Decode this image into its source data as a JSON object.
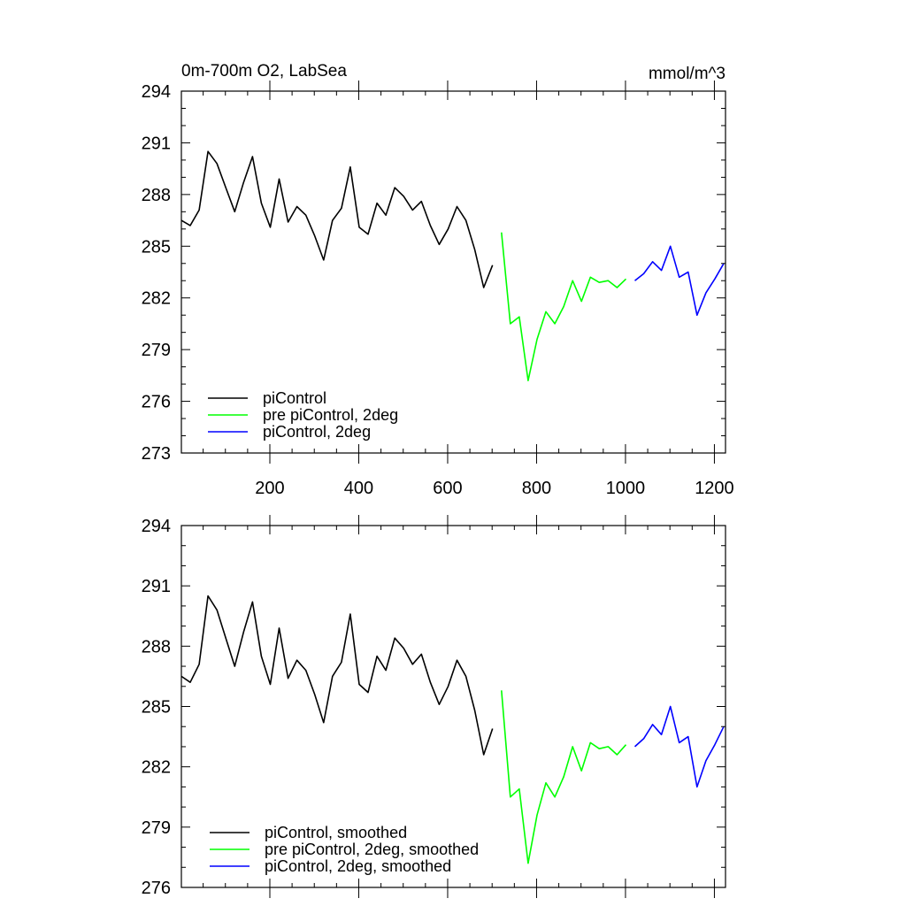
{
  "chart_data": [
    {
      "type": "line",
      "title": "0m-700m O2, LabSea",
      "units": "mmol/m^3",
      "xlabel": "",
      "ylabel": "",
      "xlim": [
        1,
        1225
      ],
      "ylim": [
        273,
        294
      ],
      "xticks": [
        200,
        400,
        600,
        800,
        1000,
        1200
      ],
      "yticks": [
        294,
        291,
        288,
        285,
        282,
        279,
        276,
        273
      ],
      "grid": false,
      "legend_position": "lower-left",
      "series": [
        {
          "name": "piControl",
          "color": "#000000",
          "x_step": 20,
          "x_start": 1,
          "values": [
            286.5,
            286.2,
            287.1,
            290.5,
            289.8,
            288.4,
            287.0,
            288.7,
            290.2,
            287.5,
            286.1,
            288.9,
            286.4,
            287.3,
            286.8,
            285.6,
            284.2,
            286.5,
            287.2,
            289.6,
            286.1,
            285.7,
            287.5,
            286.8,
            288.4,
            287.9,
            287.1,
            287.6,
            286.2,
            285.1,
            286.0,
            287.3,
            286.5,
            284.8,
            282.6,
            283.9
          ]
        },
        {
          "name": "pre piControl, 2deg",
          "color": "#00ff00",
          "x_step": 20,
          "x_start": 721,
          "values": [
            285.8,
            280.5,
            280.9,
            277.2,
            279.6,
            281.2,
            280.5,
            281.5,
            283.0,
            281.8,
            283.2,
            282.9,
            283.0,
            282.6,
            283.1
          ]
        },
        {
          "name": "piControl, 2deg",
          "color": "#0000ff",
          "x_step": 20,
          "x_start": 1021,
          "values": [
            283.0,
            283.4,
            284.1,
            283.6,
            285.0,
            283.2,
            283.5,
            281.0,
            282.3,
            283.1,
            284.0
          ]
        }
      ]
    },
    {
      "type": "line",
      "title": "",
      "xlabel": "",
      "ylabel": "",
      "xlim": [
        1,
        1225
      ],
      "ylim": [
        276,
        294
      ],
      "xticks": [
        200,
        400,
        600,
        800,
        1000,
        1200
      ],
      "yticks": [
        294,
        291,
        288,
        285,
        282,
        279,
        276
      ],
      "grid": false,
      "legend_position": "lower-left",
      "series": [
        {
          "name": "piControl, smoothed",
          "color": "#000000",
          "x_step": 20,
          "x_start": 1,
          "values": [
            286.5,
            286.2,
            287.1,
            290.5,
            289.8,
            288.4,
            287.0,
            288.7,
            290.2,
            287.5,
            286.1,
            288.9,
            286.4,
            287.3,
            286.8,
            285.6,
            284.2,
            286.5,
            287.2,
            289.6,
            286.1,
            285.7,
            287.5,
            286.8,
            288.4,
            287.9,
            287.1,
            287.6,
            286.2,
            285.1,
            286.0,
            287.3,
            286.5,
            284.8,
            282.6,
            283.9
          ]
        },
        {
          "name": "pre piControl, 2deg, smoothed",
          "color": "#00ff00",
          "x_step": 20,
          "x_start": 721,
          "values": [
            285.8,
            280.5,
            280.9,
            277.2,
            279.6,
            281.2,
            280.5,
            281.5,
            283.0,
            281.8,
            283.2,
            282.9,
            283.0,
            282.6,
            283.1
          ]
        },
        {
          "name": "piControl, 2deg, smoothed",
          "color": "#0000ff",
          "x_step": 20,
          "x_start": 1021,
          "values": [
            283.0,
            283.4,
            284.1,
            283.6,
            285.0,
            283.2,
            283.5,
            281.0,
            282.3,
            283.1,
            284.0
          ]
        }
      ]
    }
  ]
}
